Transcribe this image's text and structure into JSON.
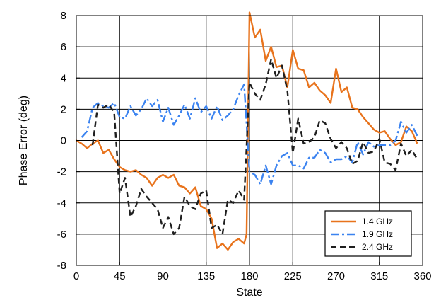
{
  "chart_data": {
    "type": "line",
    "title": "",
    "xlabel": "State",
    "ylabel": "Phase Error (deg)",
    "xlim": [
      0,
      360
    ],
    "ylim": [
      -8,
      8
    ],
    "xticks": [
      0,
      45,
      90,
      135,
      180,
      225,
      270,
      315,
      360
    ],
    "yticks": [
      -8,
      -6,
      -4,
      -2,
      0,
      2,
      4,
      6,
      8
    ],
    "xtick_labels": [
      "0",
      "45",
      "90",
      "135",
      "180",
      "225",
      "270",
      "315",
      "360"
    ],
    "ytick_labels": [
      "-8",
      "-6",
      "-4",
      "-2",
      "0",
      "2",
      "4",
      "6",
      "8"
    ],
    "grid": true,
    "legend_position": "bottom-right",
    "series": [
      {
        "name": "1.4 GHz",
        "color": "#e8731c",
        "dash": "solid",
        "x": [
          0,
          5.6,
          11.25,
          16.9,
          22.5,
          28.1,
          33.75,
          39.4,
          45,
          50.6,
          56.25,
          61.9,
          67.5,
          73.1,
          78.75,
          84.4,
          90,
          95.6,
          101.25,
          106.9,
          112.5,
          118.1,
          123.75,
          129.4,
          135,
          140.6,
          146.25,
          151.9,
          157.5,
          163.1,
          168.75,
          174.4,
          177,
          180,
          185.6,
          191.25,
          196.9,
          202.5,
          208.1,
          213.75,
          219.4,
          225,
          230.6,
          236.25,
          241.9,
          247.5,
          253.1,
          258.75,
          264.4,
          270,
          275.6,
          281.25,
          286.9,
          292.5,
          298.1,
          303.75,
          309.4,
          315,
          320.6,
          326.25,
          331.9,
          337.5,
          343.1,
          348.75,
          354.4
        ],
        "y": [
          0,
          -0.2,
          -0.5,
          -0.2,
          0,
          -0.8,
          -0.6,
          -1.2,
          -1.7,
          -1.9,
          -2.0,
          -1.9,
          -2.2,
          -2.4,
          -2.9,
          -2.4,
          -2.2,
          -2.4,
          -2.2,
          -2.9,
          -3.0,
          -3.4,
          -3.0,
          -4.2,
          -4.4,
          -5.0,
          -6.9,
          -6.6,
          -7.0,
          -6.5,
          -6.3,
          -6.6,
          -6.0,
          8.2,
          6.6,
          7.1,
          5.1,
          6.0,
          4.7,
          4.8,
          3.4,
          5.8,
          4.6,
          4.5,
          3.4,
          3.7,
          3.2,
          2.9,
          2.4,
          4.6,
          3.1,
          3.4,
          2.1,
          2.0,
          1.5,
          1.1,
          0.7,
          0.5,
          0.6,
          0.1,
          -0.3,
          -0.1,
          0.9,
          0.6,
          -0.2
        ]
      },
      {
        "name": "1.9 GHz",
        "color": "#3b83f0",
        "dash": "dashdot",
        "x": [
          5.6,
          11.25,
          16.9,
          22.5,
          28.1,
          33.75,
          39.4,
          45,
          50.6,
          56.25,
          61.9,
          67.5,
          73.1,
          78.75,
          84.4,
          90,
          95.6,
          101.25,
          106.9,
          112.5,
          118.1,
          123.75,
          129.4,
          135,
          140.6,
          146.25,
          151.9,
          157.5,
          163.1,
          168.75,
          174.4,
          180,
          185.6,
          191.25,
          196.9,
          202.5,
          208.1,
          213.75,
          219.4,
          225,
          230.6,
          236.25,
          241.9,
          247.5,
          253.1,
          258.75,
          264.4,
          270,
          275.6,
          281.25,
          286.9,
          292.5,
          298.1,
          303.75,
          309.4,
          315,
          320.6,
          326.25,
          331.9,
          337.5,
          343.1,
          348.75,
          354.4
        ],
        "y": [
          0.2,
          0.6,
          2.1,
          2.4,
          2.2,
          2.1,
          2.4,
          1.5,
          1.4,
          2.2,
          1.6,
          2.0,
          2.7,
          2.2,
          2.6,
          1.2,
          2.1,
          1.0,
          1.6,
          2.3,
          1.4,
          2.7,
          1.8,
          2.2,
          1.4,
          2.2,
          1.3,
          1.6,
          2.0,
          2.9,
          3.6,
          -2.0,
          -2.2,
          -2.8,
          -1.6,
          -2.8,
          -1.6,
          -1.0,
          -0.8,
          -1.6,
          -1.6,
          -1.8,
          -1.1,
          -1.1,
          -0.6,
          -0.8,
          -1.4,
          -1.2,
          -1.2,
          -1.0,
          -1.4,
          -0.1,
          -0.9,
          -0.1,
          -0.4,
          -0.3,
          -0.3,
          -0.3,
          0.0,
          1.2,
          0.5,
          1.0,
          0.3
        ]
      },
      {
        "name": "2.4 GHz",
        "color": "#1f1f1f",
        "dash": "dashed",
        "x": [
          16.9,
          22.5,
          28.1,
          33.75,
          39.4,
          45,
          50.6,
          56.25,
          61.9,
          67.5,
          73.1,
          78.75,
          84.4,
          90,
          95.6,
          101.25,
          106.9,
          112.5,
          118.1,
          123.75,
          129.4,
          135,
          140.6,
          146.25,
          151.9,
          157.5,
          163.1,
          168.75,
          174.4,
          180,
          185.6,
          191.25,
          196.9,
          202.5,
          208.1,
          213.75,
          219.4,
          225,
          230.6,
          236.25,
          241.9,
          247.5,
          253.1,
          258.75,
          264.4,
          270,
          275.6,
          281.25,
          286.9,
          292.5,
          298.1,
          303.75,
          309.4,
          315,
          320.6,
          326.25,
          331.9,
          337.5,
          343.1,
          348.75,
          354.4
        ],
        "y": [
          -0.3,
          2.3,
          2.1,
          2.3,
          1.8,
          -3.4,
          -2.4,
          -4.9,
          -4.2,
          -3.1,
          -3.6,
          -4.0,
          -4.4,
          -5.6,
          -4.9,
          -6.0,
          -5.6,
          -3.6,
          -4.2,
          -4.4,
          -3.4,
          -3.2,
          -5.6,
          -5.4,
          -6.0,
          -3.8,
          -4.0,
          -3.2,
          -3.8,
          3.7,
          3.0,
          2.6,
          3.6,
          5.2,
          4.0,
          4.8,
          3.2,
          -0.8,
          1.4,
          -0.2,
          -0.1,
          0.2,
          1.3,
          1.1,
          0.1,
          -0.5,
          -0.1,
          -0.5,
          -1.5,
          -1.3,
          -0.1,
          -0.8,
          -0.7,
          0.1,
          -1.4,
          -1.5,
          -1.9,
          -0.2,
          -1.0,
          -0.6,
          -1.2
        ]
      }
    ]
  }
}
